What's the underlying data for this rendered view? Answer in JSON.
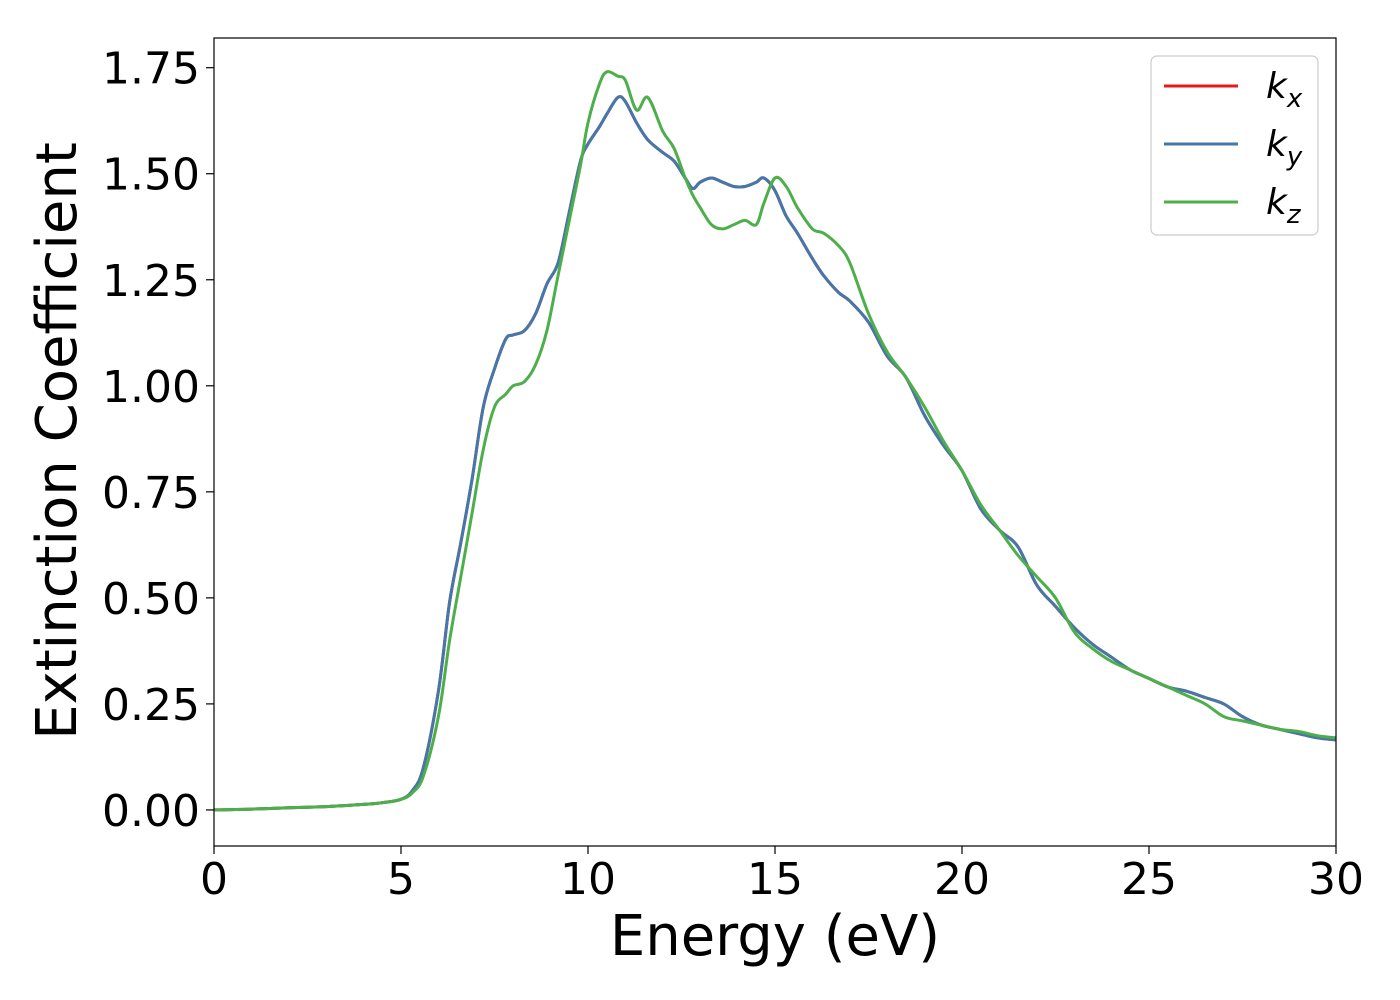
{
  "chart_data": {
    "type": "line",
    "title": "",
    "xlabel": "Energy (eV)",
    "ylabel": "Extinction Coefficient",
    "xlim": [
      0,
      30
    ],
    "ylim": [
      -0.085,
      1.82
    ],
    "grid": false,
    "legend_position": "top-right",
    "x_ticks": [
      "0",
      "5",
      "10",
      "15",
      "20",
      "25",
      "30"
    ],
    "x_tick_values": [
      0,
      5,
      10,
      15,
      20,
      25,
      30
    ],
    "y_ticks": [
      "0.00",
      "0.25",
      "0.50",
      "0.75",
      "1.00",
      "1.25",
      "1.50",
      "1.75"
    ],
    "y_tick_values": [
      0,
      0.25,
      0.5,
      0.75,
      1.0,
      1.25,
      1.5,
      1.75
    ],
    "series": [
      {
        "name": "k_x",
        "label_main": "k",
        "label_sub": "x",
        "color": "#e41a1c",
        "x": [
          0,
          1,
          2,
          3,
          4,
          4.5,
          5,
          5.3,
          5.6,
          6.0,
          6.3,
          6.6,
          6.9,
          7.2,
          7.5,
          7.8,
          8.0,
          8.3,
          8.6,
          8.9,
          9.2,
          9.5,
          9.8,
          10.0,
          10.3,
          10.5,
          10.8,
          11.0,
          11.3,
          11.6,
          12.0,
          12.3,
          12.6,
          12.8,
          13.0,
          13.3,
          13.6,
          13.9,
          14.2,
          14.5,
          14.7,
          15.0,
          15.3,
          15.6,
          16.0,
          16.3,
          16.7,
          17.0,
          17.5,
          18.0,
          18.5,
          19.0,
          19.5,
          20.0,
          20.5,
          21.0,
          21.5,
          22.0,
          22.5,
          23.0,
          23.5,
          24.0,
          24.5,
          25.0,
          25.5,
          26.0,
          26.5,
          27.0,
          27.5,
          28.0,
          28.5,
          29.0,
          29.5,
          30.0
        ],
        "y": [
          0.0,
          0.002,
          0.005,
          0.008,
          0.013,
          0.017,
          0.025,
          0.045,
          0.1,
          0.28,
          0.49,
          0.63,
          0.78,
          0.95,
          1.04,
          1.11,
          1.12,
          1.13,
          1.17,
          1.24,
          1.29,
          1.41,
          1.53,
          1.57,
          1.61,
          1.64,
          1.68,
          1.67,
          1.62,
          1.58,
          1.55,
          1.53,
          1.49,
          1.465,
          1.48,
          1.49,
          1.48,
          1.47,
          1.47,
          1.48,
          1.49,
          1.46,
          1.4,
          1.36,
          1.3,
          1.26,
          1.22,
          1.2,
          1.15,
          1.07,
          1.02,
          0.93,
          0.86,
          0.8,
          0.71,
          0.66,
          0.62,
          0.53,
          0.48,
          0.43,
          0.39,
          0.36,
          0.33,
          0.31,
          0.29,
          0.28,
          0.265,
          0.25,
          0.22,
          0.2,
          0.19,
          0.18,
          0.17,
          0.165
        ]
      },
      {
        "name": "k_y",
        "label_main": "k",
        "label_sub": "y",
        "color": "#4477aa",
        "x": [
          0,
          1,
          2,
          3,
          4,
          4.5,
          5,
          5.3,
          5.6,
          6.0,
          6.3,
          6.6,
          6.9,
          7.2,
          7.5,
          7.8,
          8.0,
          8.3,
          8.6,
          8.9,
          9.2,
          9.5,
          9.8,
          10.0,
          10.3,
          10.5,
          10.8,
          11.0,
          11.3,
          11.6,
          12.0,
          12.3,
          12.6,
          12.8,
          13.0,
          13.3,
          13.6,
          13.9,
          14.2,
          14.5,
          14.7,
          15.0,
          15.3,
          15.6,
          16.0,
          16.3,
          16.7,
          17.0,
          17.5,
          18.0,
          18.5,
          19.0,
          19.5,
          20.0,
          20.5,
          21.0,
          21.5,
          22.0,
          22.5,
          23.0,
          23.5,
          24.0,
          24.5,
          25.0,
          25.5,
          26.0,
          26.5,
          27.0,
          27.5,
          28.0,
          28.5,
          29.0,
          29.5,
          30.0
        ],
        "y": [
          0.0,
          0.002,
          0.005,
          0.008,
          0.013,
          0.017,
          0.025,
          0.045,
          0.1,
          0.28,
          0.49,
          0.63,
          0.78,
          0.95,
          1.04,
          1.11,
          1.12,
          1.13,
          1.17,
          1.24,
          1.29,
          1.41,
          1.53,
          1.57,
          1.61,
          1.64,
          1.68,
          1.67,
          1.62,
          1.58,
          1.55,
          1.53,
          1.49,
          1.465,
          1.48,
          1.49,
          1.48,
          1.47,
          1.47,
          1.48,
          1.49,
          1.46,
          1.4,
          1.36,
          1.3,
          1.26,
          1.22,
          1.2,
          1.15,
          1.07,
          1.02,
          0.93,
          0.86,
          0.8,
          0.71,
          0.66,
          0.62,
          0.53,
          0.48,
          0.43,
          0.39,
          0.36,
          0.33,
          0.31,
          0.29,
          0.28,
          0.265,
          0.25,
          0.22,
          0.2,
          0.19,
          0.18,
          0.17,
          0.165
        ]
      },
      {
        "name": "k_z",
        "label_main": "k",
        "label_sub": "z",
        "color": "#4daf4a",
        "x": [
          0,
          1,
          2,
          3,
          4,
          4.5,
          5,
          5.3,
          5.6,
          6.0,
          6.3,
          6.6,
          6.9,
          7.2,
          7.5,
          7.8,
          8.0,
          8.3,
          8.6,
          8.9,
          9.2,
          9.5,
          9.8,
          10.0,
          10.3,
          10.5,
          10.8,
          11.0,
          11.3,
          11.6,
          12.0,
          12.3,
          12.6,
          12.8,
          13.0,
          13.3,
          13.6,
          13.9,
          14.2,
          14.5,
          14.7,
          15.0,
          15.3,
          15.6,
          16.0,
          16.3,
          16.7,
          17.0,
          17.5,
          18.0,
          18.5,
          19.0,
          19.5,
          20.0,
          20.5,
          21.0,
          21.5,
          22.0,
          22.5,
          23.0,
          23.5,
          24.0,
          24.5,
          25.0,
          25.5,
          26.0,
          26.5,
          27.0,
          27.5,
          28.0,
          28.5,
          29.0,
          29.5,
          30.0
        ],
        "y": [
          0.0,
          0.002,
          0.005,
          0.008,
          0.013,
          0.017,
          0.025,
          0.04,
          0.08,
          0.22,
          0.4,
          0.55,
          0.7,
          0.85,
          0.95,
          0.98,
          1.0,
          1.01,
          1.05,
          1.13,
          1.26,
          1.39,
          1.52,
          1.62,
          1.71,
          1.74,
          1.73,
          1.72,
          1.65,
          1.68,
          1.6,
          1.56,
          1.49,
          1.45,
          1.42,
          1.38,
          1.37,
          1.38,
          1.39,
          1.38,
          1.43,
          1.49,
          1.47,
          1.42,
          1.37,
          1.36,
          1.33,
          1.29,
          1.17,
          1.08,
          1.02,
          0.95,
          0.87,
          0.8,
          0.72,
          0.66,
          0.6,
          0.55,
          0.5,
          0.42,
          0.38,
          0.35,
          0.33,
          0.31,
          0.29,
          0.27,
          0.25,
          0.22,
          0.21,
          0.2,
          0.19,
          0.185,
          0.175,
          0.17
        ]
      }
    ]
  }
}
